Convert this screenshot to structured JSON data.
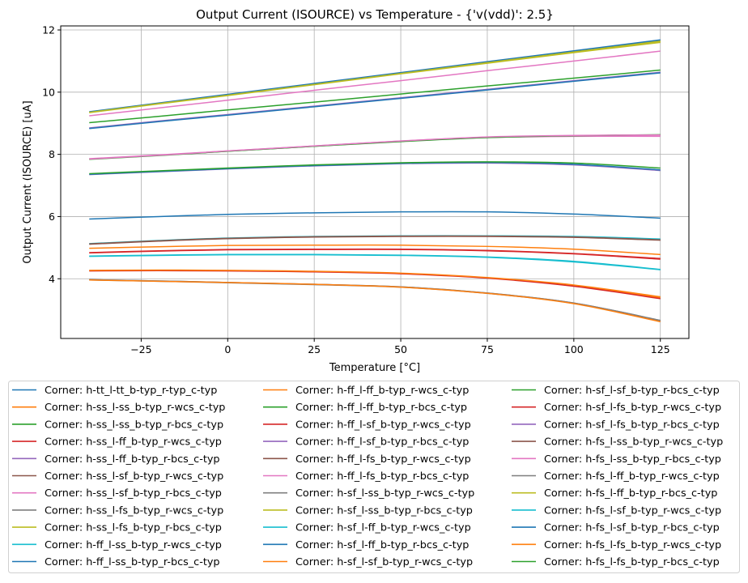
{
  "chart_data": {
    "type": "line",
    "title": "Output Current (ISOURCE) vs Temperature - {'v(vdd)': 2.5}",
    "xlabel": "Temperature [°C]",
    "ylabel": "Output Current (ISOURCE) [uA]",
    "xlim": [
      -48.25,
      133.25
    ],
    "ylim": [
      2.08,
      12.13
    ],
    "xticks": [
      -25,
      0,
      25,
      50,
      75,
      100,
      125
    ],
    "yticks": [
      4,
      6,
      8,
      10,
      12
    ],
    "grid": true,
    "legend_placement": "bottom, 3 columns",
    "x": [
      -40,
      -20,
      0,
      25,
      50,
      75,
      100,
      125
    ],
    "colors": [
      "#1f77b4",
      "#ff7f0e",
      "#2ca02c",
      "#d62728",
      "#9467bd",
      "#8c564b",
      "#e377c2",
      "#7f7f7f",
      "#bcbd22",
      "#17becf"
    ],
    "series": [
      {
        "name": "Corner: h-tt_l-tt_b-typ_r-typ_c-typ",
        "values": [
          5.92,
          6.0,
          6.07,
          6.12,
          6.15,
          6.15,
          6.08,
          5.95
        ]
      },
      {
        "name": "Corner: h-ss_l-ss_b-typ_r-wcs_c-typ",
        "values": [
          4.26,
          4.27,
          4.26,
          4.23,
          4.17,
          4.03,
          3.78,
          3.39
        ]
      },
      {
        "name": "Corner: h-ss_l-ss_b-typ_r-bcs_c-typ",
        "values": [
          7.85,
          7.97,
          8.1,
          8.26,
          8.42,
          8.55,
          8.6,
          8.62
        ]
      },
      {
        "name": "Corner: h-ss_l-ff_b-typ_r-wcs_c-typ",
        "values": [
          4.25,
          4.26,
          4.25,
          4.22,
          4.16,
          4.02,
          3.76,
          3.36
        ]
      },
      {
        "name": "Corner: h-ss_l-ff_b-typ_r-bcs_c-typ",
        "values": [
          8.84,
          9.06,
          9.27,
          9.54,
          9.81,
          10.08,
          10.36,
          10.63
        ]
      },
      {
        "name": "Corner: h-ss_l-sf_b-typ_r-wcs_c-typ",
        "values": [
          5.11,
          5.21,
          5.29,
          5.34,
          5.36,
          5.36,
          5.33,
          5.24
        ]
      },
      {
        "name": "Corner: h-ss_l-sf_b-typ_r-bcs_c-typ",
        "values": [
          7.86,
          7.98,
          8.11,
          8.27,
          8.43,
          8.54,
          8.58,
          8.58
        ]
      },
      {
        "name": "Corner: h-ss_l-fs_b-typ_r-wcs_c-typ",
        "values": [
          3.97,
          3.93,
          3.88,
          3.82,
          3.74,
          3.54,
          3.22,
          2.66
        ]
      },
      {
        "name": "Corner: h-ss_l-fs_b-typ_r-bcs_c-typ",
        "values": [
          9.36,
          9.64,
          9.91,
          10.26,
          10.61,
          10.96,
          11.31,
          11.65
        ]
      },
      {
        "name": "Corner: h-ff_l-ss_b-typ_r-wcs_c-typ",
        "values": [
          4.72,
          4.75,
          4.77,
          4.77,
          4.75,
          4.69,
          4.54,
          4.29
        ]
      },
      {
        "name": "Corner: h-ff_l-ss_b-typ_r-bcs_c-typ",
        "values": [
          9.37,
          9.65,
          9.93,
          10.28,
          10.63,
          10.98,
          11.33,
          11.68
        ]
      },
      {
        "name": "Corner: h-ff_l-ff_b-typ_r-wcs_c-typ",
        "values": [
          4.98,
          5.03,
          5.07,
          5.08,
          5.08,
          5.04,
          4.95,
          4.78
        ]
      },
      {
        "name": "Corner: h-ff_l-ff_b-typ_r-bcs_c-typ",
        "values": [
          9.02,
          9.22,
          9.43,
          9.68,
          9.94,
          10.2,
          10.45,
          10.71
        ]
      },
      {
        "name": "Corner: h-ff_l-sf_b-typ_r-wcs_c-typ",
        "values": [
          4.84,
          4.9,
          4.94,
          4.95,
          4.95,
          4.91,
          4.81,
          4.65
        ]
      },
      {
        "name": "Corner: h-ff_l-sf_b-typ_r-bcs_c-typ",
        "values": [
          8.85,
          9.07,
          9.28,
          9.55,
          9.82,
          10.09,
          10.37,
          10.64
        ]
      },
      {
        "name": "Corner: h-ff_l-fs_b-typ_r-wcs_c-typ",
        "values": [
          5.12,
          5.22,
          5.3,
          5.35,
          5.37,
          5.37,
          5.34,
          5.25
        ]
      },
      {
        "name": "Corner: h-ff_l-fs_b-typ_r-bcs_c-typ",
        "values": [
          9.24,
          9.49,
          9.74,
          10.06,
          10.37,
          10.69,
          11.0,
          11.32
        ]
      },
      {
        "name": "Corner: h-sf_l-ss_b-typ_r-wcs_c-typ",
        "values": [
          3.96,
          3.92,
          3.87,
          3.81,
          3.73,
          3.53,
          3.21,
          2.64
        ]
      },
      {
        "name": "Corner: h-sf_l-ss_b-typ_r-bcs_c-typ",
        "values": [
          9.35,
          9.63,
          9.9,
          10.25,
          10.6,
          10.95,
          11.29,
          11.63
        ]
      },
      {
        "name": "Corner: h-sf_l-ff_b-typ_r-wcs_c-typ",
        "values": [
          5.13,
          5.23,
          5.31,
          5.36,
          5.38,
          5.38,
          5.36,
          5.28
        ]
      },
      {
        "name": "Corner: h-sf_l-ff_b-typ_r-bcs_c-typ",
        "values": [
          8.83,
          9.05,
          9.26,
          9.53,
          9.8,
          10.07,
          10.35,
          10.62
        ]
      },
      {
        "name": "Corner: h-sf_l-sf_b-typ_r-wcs_c-typ",
        "values": [
          4.27,
          4.28,
          4.27,
          4.24,
          4.18,
          4.04,
          3.8,
          3.42
        ]
      },
      {
        "name": "Corner: h-sf_l-sf_b-typ_r-bcs_c-typ",
        "values": [
          7.84,
          7.96,
          8.1,
          8.26,
          8.41,
          8.54,
          8.6,
          8.63
        ]
      },
      {
        "name": "Corner: h-sf_l-fs_b-typ_r-wcs_c-typ",
        "values": [
          4.83,
          4.89,
          4.93,
          4.94,
          4.94,
          4.9,
          4.8,
          4.63
        ]
      },
      {
        "name": "Corner: h-sf_l-fs_b-typ_r-bcs_c-typ",
        "values": [
          7.35,
          7.44,
          7.53,
          7.63,
          7.7,
          7.72,
          7.66,
          7.48
        ]
      },
      {
        "name": "Corner: h-fs_l-ss_b-typ_r-wcs_c-typ",
        "values": [
          5.12,
          5.22,
          5.3,
          5.35,
          5.37,
          5.37,
          5.34,
          5.25
        ]
      },
      {
        "name": "Corner: h-fs_l-ss_b-typ_r-bcs_c-typ",
        "values": [
          7.85,
          7.97,
          8.11,
          8.27,
          8.43,
          8.56,
          8.61,
          8.62
        ]
      },
      {
        "name": "Corner: h-fs_l-ff_b-typ_r-wcs_c-typ",
        "values": [
          3.97,
          3.93,
          3.88,
          3.82,
          3.74,
          3.54,
          3.22,
          2.66
        ]
      },
      {
        "name": "Corner: h-fs_l-ff_b-typ_r-bcs_c-typ",
        "values": [
          9.34,
          9.62,
          9.89,
          10.24,
          10.59,
          10.93,
          11.27,
          11.6
        ]
      },
      {
        "name": "Corner: h-fs_l-sf_b-typ_r-wcs_c-typ",
        "values": [
          4.73,
          4.76,
          4.78,
          4.78,
          4.76,
          4.7,
          4.56,
          4.3
        ]
      },
      {
        "name": "Corner: h-fs_l-sf_b-typ_r-bcs_c-typ",
        "values": [
          7.36,
          7.45,
          7.54,
          7.64,
          7.71,
          7.74,
          7.68,
          7.5
        ]
      },
      {
        "name": "Corner: h-fs_l-fs_b-typ_r-wcs_c-typ",
        "values": [
          3.96,
          3.92,
          3.88,
          3.82,
          3.73,
          3.53,
          3.2,
          2.62
        ]
      },
      {
        "name": "Corner: h-fs_l-fs_b-typ_r-bcs_c-typ",
        "values": [
          7.38,
          7.47,
          7.56,
          7.66,
          7.73,
          7.76,
          7.72,
          7.56
        ]
      }
    ]
  }
}
